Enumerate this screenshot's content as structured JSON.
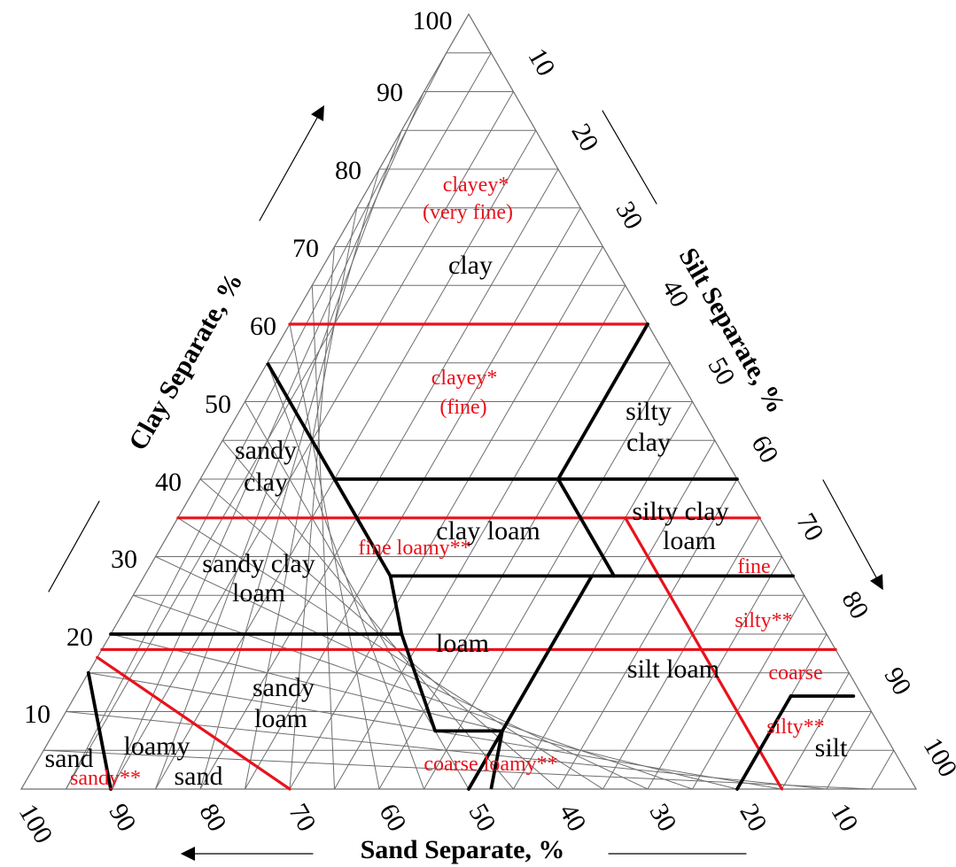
{
  "axes": {
    "clay_title": "Clay Separate, %",
    "silt_title": "Silt Separate, %",
    "sand_title": "Sand Separate, %",
    "clay_ticks": [
      "100",
      "90",
      "80",
      "70",
      "60",
      "50",
      "40",
      "30",
      "20",
      "10"
    ],
    "silt_ticks": [
      "10",
      "20",
      "30",
      "40",
      "50",
      "60",
      "70",
      "80",
      "90",
      "100"
    ],
    "sand_ticks": [
      "100",
      "90",
      "80",
      "70",
      "60",
      "50",
      "40",
      "30",
      "20",
      "10"
    ]
  },
  "classes": {
    "clay": "clay",
    "silty_clay_1": "silty",
    "silty_clay_2": "clay",
    "sandy_clay_1": "sandy",
    "sandy_clay_2": "clay",
    "clay_loam": "clay loam",
    "silty_clay_loam_1": "silty clay",
    "silty_clay_loam_2": "loam",
    "sandy_clay_loam_1": "sandy clay",
    "sandy_clay_loam_2": "loam",
    "loam": "loam",
    "silt_loam": "silt loam",
    "sandy_loam_1": "sandy",
    "sandy_loam_2": "loam",
    "loamy_sand_1": "loamy",
    "loamy_sand_2": "sand",
    "sand": "sand",
    "silt": "silt"
  },
  "families": {
    "clayey_very_fine_1": "clayey*",
    "clayey_very_fine_2": "(very fine)",
    "clayey_fine_1": "clayey*",
    "clayey_fine_2": "(fine)",
    "fine_loamy": "fine  loamy**",
    "fine_silty_1": "fine",
    "fine_silty_2": "silty**",
    "coarse_silty_1": "coarse",
    "coarse_silty_2": "silty**",
    "coarse_loamy": "coarse  loamy**",
    "sandy": "sandy**"
  },
  "colors": {
    "grid": "#6e6e6e",
    "class_boundary": "#000000",
    "family_boundary": "#e8121c",
    "family_text": "#e8121c"
  }
}
